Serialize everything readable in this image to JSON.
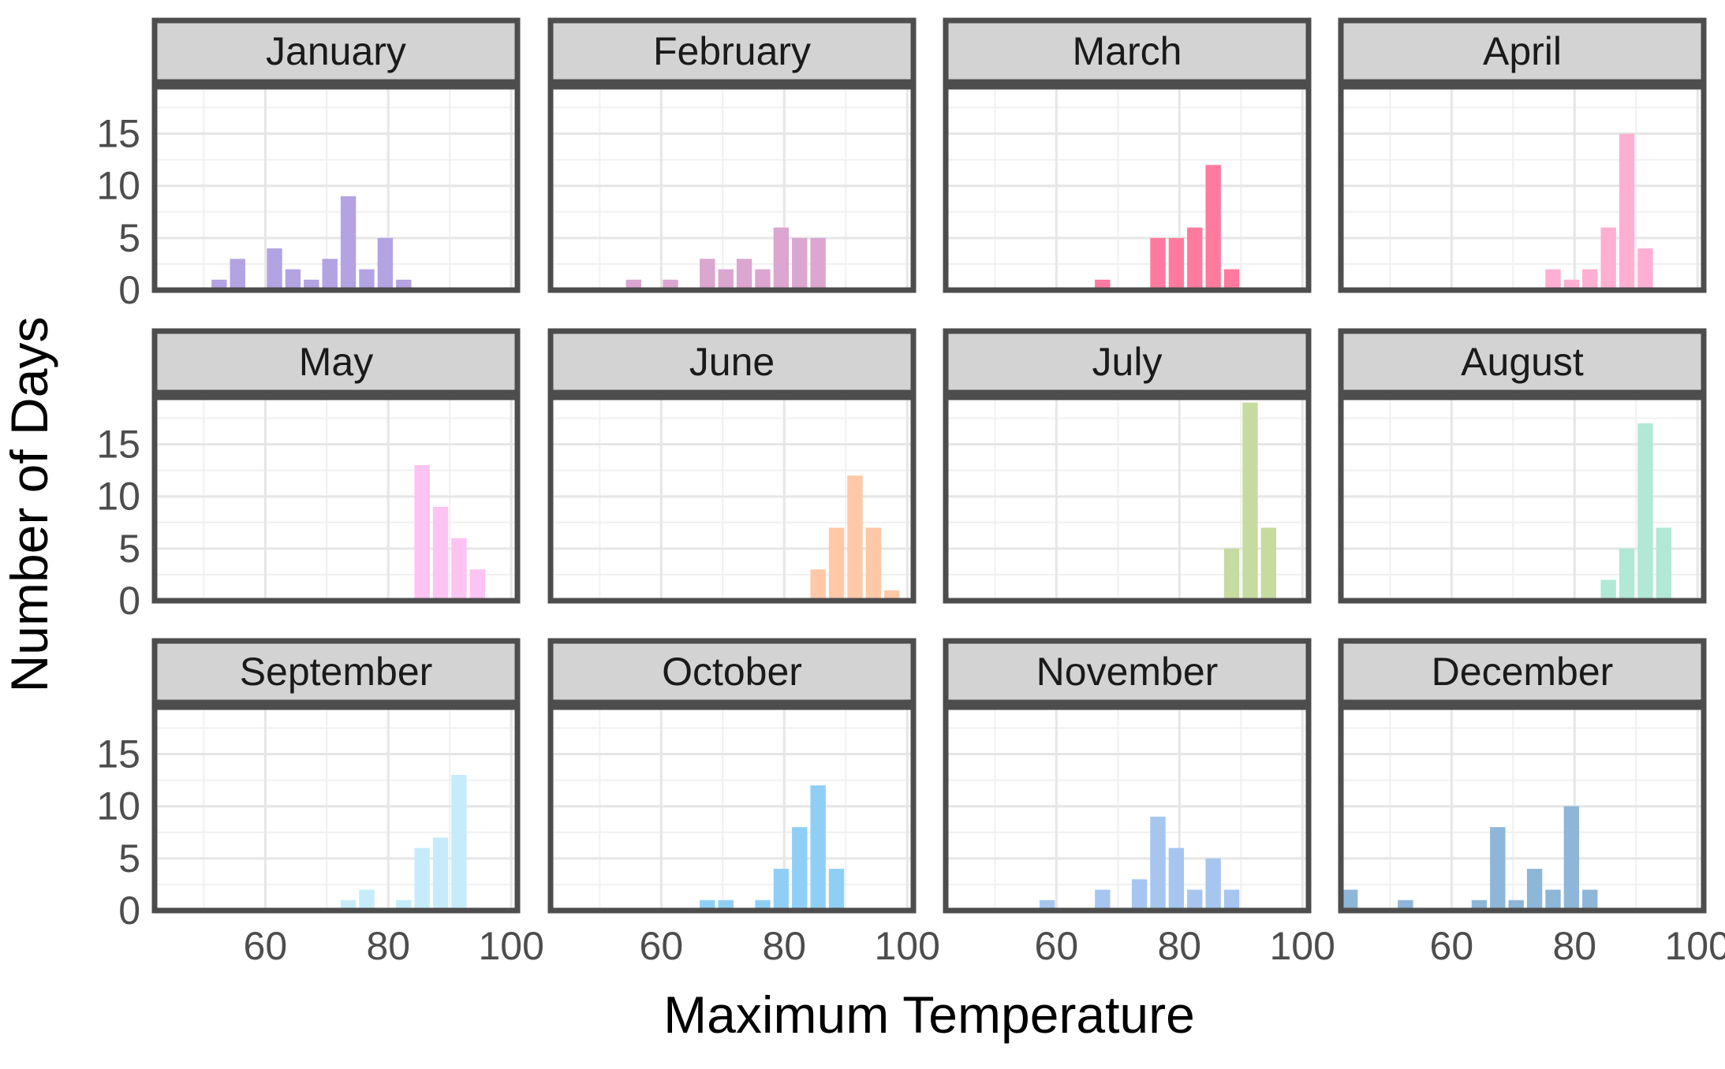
{
  "chart_data": {
    "type": "bar",
    "xlabel": "Maximum Temperature",
    "ylabel": "Number of Days",
    "xlim": [
      42,
      101
    ],
    "ylim": [
      0,
      19.5
    ],
    "x_ticks": [
      60,
      80,
      100
    ],
    "y_ticks": [
      0,
      5,
      10,
      15
    ],
    "bin_width": 3,
    "grid": true,
    "panels": [
      {
        "name": "January",
        "color": "#b3a3e3",
        "bins": [
          {
            "x": 52.5,
            "y": 1
          },
          {
            "x": 55.5,
            "y": 3
          },
          {
            "x": 61.5,
            "y": 4
          },
          {
            "x": 64.5,
            "y": 2
          },
          {
            "x": 67.5,
            "y": 1
          },
          {
            "x": 70.5,
            "y": 3
          },
          {
            "x": 73.5,
            "y": 9
          },
          {
            "x": 76.5,
            "y": 2
          },
          {
            "x": 79.5,
            "y": 5
          },
          {
            "x": 82.5,
            "y": 1
          }
        ]
      },
      {
        "name": "February",
        "color": "#dba6d0",
        "bins": [
          {
            "x": 55.5,
            "y": 1
          },
          {
            "x": 61.5,
            "y": 1
          },
          {
            "x": 67.5,
            "y": 3
          },
          {
            "x": 70.5,
            "y": 2
          },
          {
            "x": 73.5,
            "y": 3
          },
          {
            "x": 76.5,
            "y": 2
          },
          {
            "x": 79.5,
            "y": 6
          },
          {
            "x": 82.5,
            "y": 5
          },
          {
            "x": 85.5,
            "y": 5
          }
        ]
      },
      {
        "name": "March",
        "color": "#ff7a9e",
        "bins": [
          {
            "x": 67.5,
            "y": 1
          },
          {
            "x": 76.5,
            "y": 5
          },
          {
            "x": 79.5,
            "y": 5
          },
          {
            "x": 82.5,
            "y": 6
          },
          {
            "x": 85.5,
            "y": 12
          },
          {
            "x": 88.5,
            "y": 2
          }
        ]
      },
      {
        "name": "April",
        "color": "#ffb0d2",
        "bins": [
          {
            "x": 76.5,
            "y": 2
          },
          {
            "x": 79.5,
            "y": 1
          },
          {
            "x": 82.5,
            "y": 2
          },
          {
            "x": 85.5,
            "y": 6
          },
          {
            "x": 88.5,
            "y": 15
          },
          {
            "x": 91.5,
            "y": 4
          }
        ]
      },
      {
        "name": "May",
        "color": "#fdc3f2",
        "bins": [
          {
            "x": 85.5,
            "y": 13
          },
          {
            "x": 88.5,
            "y": 9
          },
          {
            "x": 91.5,
            "y": 6
          },
          {
            "x": 94.5,
            "y": 3
          }
        ]
      },
      {
        "name": "June",
        "color": "#ffc8a6",
        "bins": [
          {
            "x": 85.5,
            "y": 3
          },
          {
            "x": 88.5,
            "y": 7
          },
          {
            "x": 91.5,
            "y": 12
          },
          {
            "x": 94.5,
            "y": 7
          },
          {
            "x": 97.5,
            "y": 1
          }
        ]
      },
      {
        "name": "July",
        "color": "#c6dba0",
        "bins": [
          {
            "x": 88.5,
            "y": 5
          },
          {
            "x": 91.5,
            "y": 19
          },
          {
            "x": 94.5,
            "y": 7
          }
        ]
      },
      {
        "name": "August",
        "color": "#b1e8d6",
        "bins": [
          {
            "x": 85.5,
            "y": 2
          },
          {
            "x": 88.5,
            "y": 5
          },
          {
            "x": 91.5,
            "y": 17
          },
          {
            "x": 94.5,
            "y": 7
          }
        ]
      },
      {
        "name": "September",
        "color": "#c6ecfb",
        "bins": [
          {
            "x": 73.5,
            "y": 1
          },
          {
            "x": 76.5,
            "y": 2
          },
          {
            "x": 82.5,
            "y": 1
          },
          {
            "x": 85.5,
            "y": 6
          },
          {
            "x": 88.5,
            "y": 7
          },
          {
            "x": 91.5,
            "y": 13
          }
        ]
      },
      {
        "name": "October",
        "color": "#8fcff6",
        "bins": [
          {
            "x": 67.5,
            "y": 1
          },
          {
            "x": 70.5,
            "y": 1
          },
          {
            "x": 76.5,
            "y": 1
          },
          {
            "x": 79.5,
            "y": 4
          },
          {
            "x": 82.5,
            "y": 8
          },
          {
            "x": 85.5,
            "y": 12
          },
          {
            "x": 88.5,
            "y": 4
          }
        ]
      },
      {
        "name": "November",
        "color": "#a6c6f0",
        "bins": [
          {
            "x": 58.5,
            "y": 1
          },
          {
            "x": 67.5,
            "y": 2
          },
          {
            "x": 73.5,
            "y": 3
          },
          {
            "x": 76.5,
            "y": 9
          },
          {
            "x": 79.5,
            "y": 6
          },
          {
            "x": 82.5,
            "y": 2
          },
          {
            "x": 85.5,
            "y": 5
          },
          {
            "x": 88.5,
            "y": 2
          }
        ]
      },
      {
        "name": "December",
        "color": "#8db6d8",
        "bins": [
          {
            "x": 43.5,
            "y": 2
          },
          {
            "x": 52.5,
            "y": 1
          },
          {
            "x": 64.5,
            "y": 1
          },
          {
            "x": 67.5,
            "y": 8
          },
          {
            "x": 70.5,
            "y": 1
          },
          {
            "x": 73.5,
            "y": 4
          },
          {
            "x": 76.5,
            "y": 2
          },
          {
            "x": 79.5,
            "y": 10
          },
          {
            "x": 82.5,
            "y": 2
          }
        ]
      }
    ]
  }
}
